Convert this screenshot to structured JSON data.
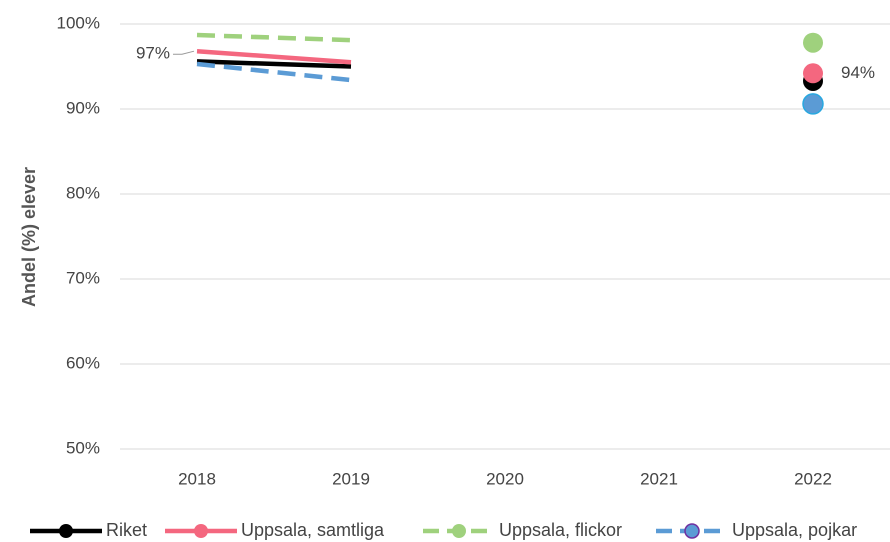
{
  "chart_data": {
    "type": "line",
    "y_label": "Andel (%) elever",
    "categories": [
      "2018",
      "2019",
      "2020",
      "2021",
      "2022"
    ],
    "series": [
      {
        "name": "Riket",
        "color": "#000000",
        "dashed": false,
        "values": [
          95.6,
          95.0,
          null,
          null,
          93.3
        ]
      },
      {
        "name": "Uppsala, samtliga",
        "color": "#f4677f",
        "dashed": false,
        "values": [
          96.8,
          95.5,
          null,
          null,
          94.2
        ],
        "value_labels": [
          "97%",
          null,
          null,
          null,
          "94%"
        ]
      },
      {
        "name": "Uppsala, flickor",
        "color": "#9fd17d",
        "dashed": true,
        "values": [
          98.7,
          98.1,
          null,
          null,
          97.8
        ]
      },
      {
        "name": "Uppsala, pojkar",
        "color": "#5b9bd5",
        "dashed": true,
        "values": [
          95.3,
          93.4,
          null,
          null,
          90.6
        ]
      }
    ],
    "ylim": [
      50,
      100
    ],
    "yticks": [
      {
        "value": 50,
        "label": "50%"
      },
      {
        "value": 60,
        "label": "60%"
      },
      {
        "value": 70,
        "label": "70%"
      },
      {
        "value": 80,
        "label": "80%"
      },
      {
        "value": 90,
        "label": "90%"
      },
      {
        "value": 100,
        "label": "100%"
      }
    ],
    "grid": true
  }
}
